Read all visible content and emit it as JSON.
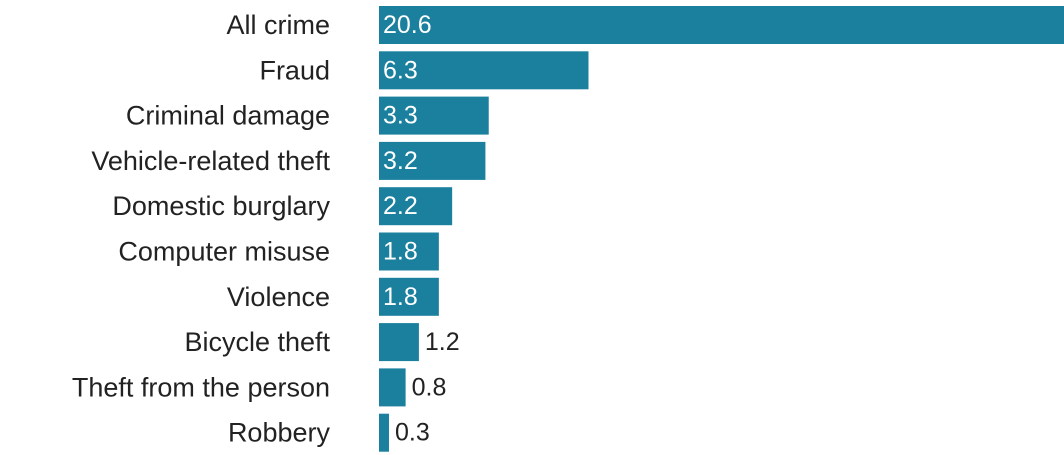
{
  "chart_data": {
    "type": "bar",
    "orientation": "horizontal",
    "categories": [
      "All crime",
      "Fraud",
      "Criminal damage",
      "Vehicle-related theft",
      "Domestic burglary",
      "Computer misuse",
      "Violence",
      "Bicycle theft",
      "Theft from the person",
      "Robbery"
    ],
    "values": [
      20.6,
      6.3,
      3.3,
      3.2,
      2.2,
      1.8,
      1.8,
      1.2,
      0.8,
      0.3
    ],
    "value_labels": [
      "20.6",
      "6.3",
      "3.3",
      "3.2",
      "2.2",
      "1.8",
      "1.8",
      "1.2",
      "0.8",
      "0.3"
    ],
    "xlim": [
      0,
      20.6
    ],
    "grid": false,
    "legend": "none",
    "colors": {
      "bar": "#1b7f9e",
      "label_inside": "#ffffff",
      "label_outside": "#222222",
      "category_text": "#222222"
    }
  }
}
